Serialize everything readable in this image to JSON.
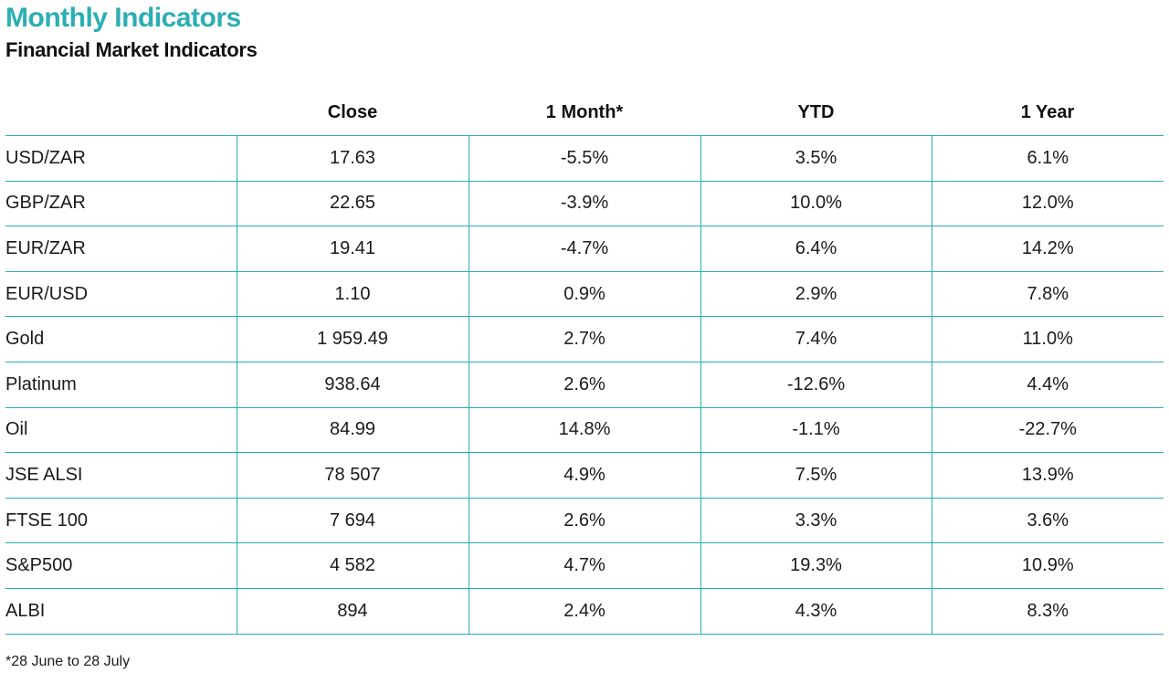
{
  "header": {
    "title": "Monthly Indicators",
    "subtitle": "Financial Market Indicators"
  },
  "colors": {
    "accent": "#2aaeb3"
  },
  "table": {
    "columns": [
      "",
      "Close",
      "1 Month*",
      "YTD",
      "1 Year"
    ],
    "rows": [
      {
        "label": "USD/ZAR",
        "close": "17.63",
        "month": "-5.5%",
        "ytd": "3.5%",
        "year": "6.1%"
      },
      {
        "label": "GBP/ZAR",
        "close": "22.65",
        "month": "-3.9%",
        "ytd": "10.0%",
        "year": "12.0%"
      },
      {
        "label": "EUR/ZAR",
        "close": "19.41",
        "month": "-4.7%",
        "ytd": "6.4%",
        "year": "14.2%"
      },
      {
        "label": "EUR/USD",
        "close": "1.10",
        "month": "0.9%",
        "ytd": "2.9%",
        "year": "7.8%"
      },
      {
        "label": "Gold",
        "close": "1 959.49",
        "month": "2.7%",
        "ytd": "7.4%",
        "year": "11.0%"
      },
      {
        "label": "Platinum",
        "close": "938.64",
        "month": "2.6%",
        "ytd": "-12.6%",
        "year": "4.4%"
      },
      {
        "label": "Oil",
        "close": "84.99",
        "month": "14.8%",
        "ytd": "-1.1%",
        "year": "-22.7%"
      },
      {
        "label": "JSE ALSI",
        "close": "78 507",
        "month": "4.9%",
        "ytd": "7.5%",
        "year": "13.9%"
      },
      {
        "label": "FTSE 100",
        "close": "7 694",
        "month": "2.6%",
        "ytd": "3.3%",
        "year": "3.6%"
      },
      {
        "label": "S&P500",
        "close": "4 582",
        "month": "4.7%",
        "ytd": "19.3%",
        "year": "10.9%"
      },
      {
        "label": "ALBI",
        "close": "894",
        "month": "2.4%",
        "ytd": "4.3%",
        "year": "8.3%"
      }
    ]
  },
  "footnote": "*28 June to 28 July"
}
